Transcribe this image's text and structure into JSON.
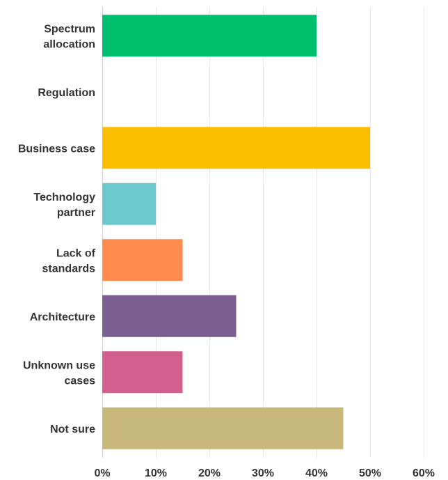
{
  "chart_data": {
    "type": "bar",
    "orientation": "horizontal",
    "categories": [
      "Spectrum allocation",
      "Regulation",
      "Business case",
      "Technology partner",
      "Lack of standards",
      "Architecture",
      "Unknown use cases",
      "Not sure"
    ],
    "label_lines": [
      [
        "Spectrum",
        "allocation"
      ],
      [
        "Regulation"
      ],
      [
        "Business case"
      ],
      [
        "Technology",
        "partner"
      ],
      [
        "Lack of",
        "standards"
      ],
      [
        "Architecture"
      ],
      [
        "Unknown use",
        "cases"
      ],
      [
        "Not sure"
      ]
    ],
    "values": [
      40,
      0,
      50,
      10,
      15,
      25,
      15,
      45
    ],
    "colors": [
      "#00bf6f",
      "#6bc8cd",
      "#f9be00",
      "#6bc8cd",
      "#ff8b4f",
      "#7d5e90",
      "#d25f90",
      "#c8b87a"
    ],
    "x_ticks": [
      0,
      10,
      20,
      30,
      40,
      50,
      60
    ],
    "x_tick_labels": [
      "0%",
      "10%",
      "20%",
      "30%",
      "40%",
      "50%",
      "60%"
    ],
    "xlim": [
      0,
      60
    ],
    "title": "",
    "xlabel": "",
    "ylabel": "",
    "grid": true,
    "legend": "none"
  }
}
